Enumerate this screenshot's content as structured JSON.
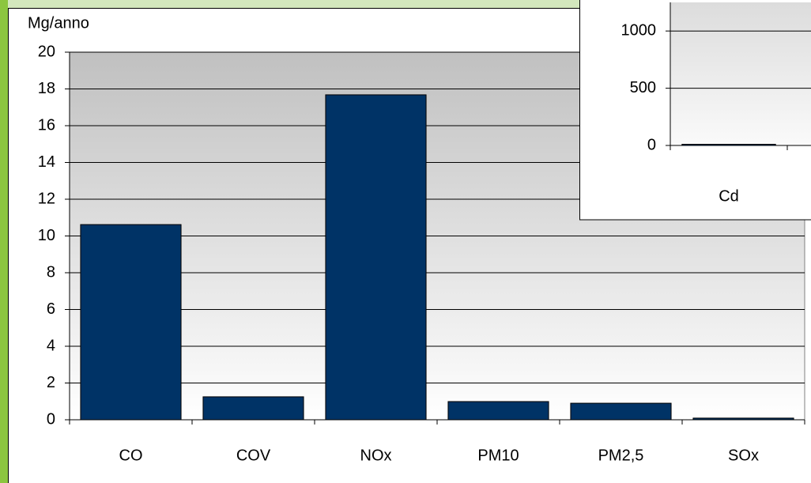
{
  "chart_data": [
    {
      "type": "bar",
      "ylabel": "Mg/anno",
      "categories": [
        "CO",
        "COV",
        "NOx",
        "PM10",
        "PM2,5",
        "SOx"
      ],
      "values": [
        10.62,
        1.25,
        17.68,
        0.99,
        0.9,
        0.09
      ],
      "color": "#003366",
      "ylim": [
        0,
        20
      ],
      "yticks": [
        0,
        2,
        4,
        6,
        8,
        10,
        12,
        14,
        16,
        18,
        20
      ],
      "grid": true
    },
    {
      "type": "bar",
      "categories": [
        "Cd"
      ],
      "values": [
        10
      ],
      "color": "#003366",
      "ylim": [
        0,
        1250
      ],
      "yticks": [
        0,
        500,
        1000
      ],
      "grid": true
    }
  ]
}
